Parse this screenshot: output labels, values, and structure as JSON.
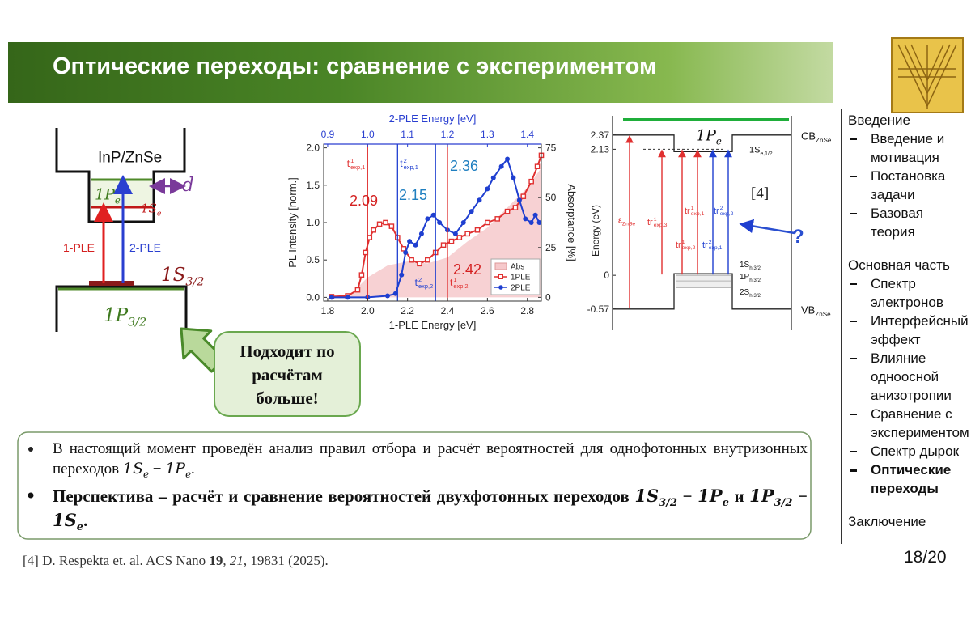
{
  "header": {
    "title": "Оптические переходы: сравнение с экспериментом"
  },
  "scheme": {
    "material": "InP/ZnSe",
    "level_pe": {
      "t": "1P",
      "sub": "e",
      "m": true
    },
    "level_se": {
      "t": "1S",
      "sub": "e",
      "m": true
    },
    "size": {
      "t": "d",
      "m": true
    },
    "ple1": "1-PLE",
    "ple2": "2-PLE",
    "level_s32": {
      "t": "1S",
      "sub": "3/2",
      "m": true
    },
    "level_p32": {
      "t": "1P",
      "sub": "3/2",
      "m": true
    }
  },
  "callout": {
    "lines": [
      "Подходит по",
      "расчётам",
      "больше!"
    ]
  },
  "chart_data": {
    "type": "line",
    "x_label": "1-PLE Energy [eV]",
    "x2_label": "2-PLE Energy [eV]",
    "y_label": "PL Intensity [norm.]",
    "y2_label": "Absorptance [%]",
    "xlim": [
      1.78,
      2.87
    ],
    "xticks": [
      1.8,
      {
        "value": 2,
        "label": "2.0"
      },
      2.2,
      2.4,
      2.6,
      2.8
    ],
    "x2lim": [
      0.89,
      1.435
    ],
    "x2ticks": [
      0.9,
      {
        "value": 1,
        "label": "1.0"
      },
      1.1,
      1.2,
      1.3,
      1.4
    ],
    "ylim": [
      -0.05,
      2.05
    ],
    "yticks": [
      {
        "value": 0,
        "label": "0.0"
      },
      0.5,
      {
        "value": 1,
        "label": "1.0"
      },
      1.5,
      {
        "value": 2,
        "label": "2.0"
      }
    ],
    "y2lim": [
      -1.875,
      76.875
    ],
    "y2ticks": [
      0,
      25,
      50,
      75
    ],
    "legend": "lower right",
    "series": [
      {
        "name": "Abs",
        "color": "#f6c9cb",
        "axis": "y2",
        "x": [
          1.9,
          2.0,
          2.1,
          2.2,
          2.3,
          2.4,
          2.5,
          2.6,
          2.7,
          2.8,
          2.87
        ],
        "values": [
          0,
          10,
          16,
          18,
          17,
          20,
          28,
          35,
          45,
          55,
          65
        ]
      },
      {
        "name": "1PLE",
        "color": "#e03030",
        "x": [
          1.82,
          1.9,
          1.95,
          1.97,
          1.99,
          2.01,
          2.03,
          2.06,
          2.09,
          2.12,
          2.15,
          2.18,
          2.22,
          2.26,
          2.3,
          2.34,
          2.38,
          2.42,
          2.46,
          2.5,
          2.55,
          2.6,
          2.65,
          2.7,
          2.74,
          2.78,
          2.82,
          2.85,
          2.87
        ],
        "values": [
          0.01,
          0.02,
          0.1,
          0.3,
          0.6,
          0.8,
          0.9,
          0.98,
          1.0,
          0.95,
          0.8,
          0.65,
          0.5,
          0.45,
          0.5,
          0.6,
          0.7,
          0.75,
          0.8,
          0.85,
          0.9,
          1.0,
          1.05,
          1.15,
          1.2,
          1.35,
          1.55,
          1.75,
          1.9
        ]
      },
      {
        "name": "2PLE",
        "color": "#1f3fd0",
        "x": [
          1.82,
          1.9,
          2.0,
          2.1,
          2.14,
          2.17,
          2.19,
          2.21,
          2.24,
          2.27,
          2.3,
          2.33,
          2.36,
          2.4,
          2.44,
          2.48,
          2.52,
          2.56,
          2.6,
          2.63,
          2.67,
          2.7,
          2.73,
          2.76,
          2.79,
          2.82,
          2.84,
          2.86
        ],
        "values": [
          0.0,
          0.0,
          0.0,
          0.02,
          0.05,
          0.3,
          0.6,
          0.75,
          0.7,
          0.85,
          1.05,
          1.1,
          1.0,
          0.9,
          0.85,
          1.0,
          1.15,
          1.3,
          1.45,
          1.6,
          1.75,
          1.85,
          1.6,
          1.3,
          1.05,
          1.0,
          1.1,
          1.0
        ]
      }
    ],
    "markers": [
      {
        "x": 2.0,
        "color": "#e03030",
        "label": {
          "t": "t",
          "sup": "1",
          "sub": "exp,1"
        }
      },
      {
        "x": 2.15,
        "color": "#1f3fd0",
        "label": {
          "t": "t",
          "sup": "2",
          "sub": "exp,1"
        }
      },
      {
        "x": 2.34,
        "color": "#1f3fd0",
        "label": {
          "t": "t",
          "sup": "2",
          "sub": "exp,2"
        }
      },
      {
        "x": 2.4,
        "color": "#e03030",
        "label": {
          "t": "t",
          "sup": "1",
          "sub": "exp,2"
        }
      }
    ],
    "annotations": [
      {
        "text": "2.09",
        "color": "#d42020"
      },
      {
        "text": "2.15",
        "color": "#1f7fc0"
      },
      {
        "text": "2.36",
        "color": "#1f7fc0"
      },
      {
        "text": "2.42",
        "color": "#d42020"
      }
    ]
  },
  "energy_diagram": {
    "y_label": "Energy (eV)",
    "ylim": [
      -0.75,
      2.6
    ],
    "yticks": [
      2.37,
      2.13,
      0,
      -0.57
    ],
    "levels": {
      "pe": {
        "t": "1P",
        "sub": "e",
        "m": true
      },
      "cb": {
        "t": "CB",
        "sub": "ZnSe"
      },
      "se": {
        "t": "1S",
        "sub": "e,1/2"
      },
      "vb": {
        "t": "VB",
        "sub": "ZnSe"
      },
      "holes": [
        {
          "t": "1S",
          "sub": "h,3/2"
        },
        {
          "t": "1P",
          "sub": "h,3/2"
        },
        {
          "t": "2S",
          "sub": "h,3/2"
        }
      ]
    },
    "transitions": [
      {
        "label": {
          "t": "ε",
          "sub": "ZnSe"
        },
        "color": "#e03030"
      },
      {
        "label": {
          "t": "tr",
          "sup": "1",
          "sub": "exp,3"
        },
        "color": "#e03030"
      },
      {
        "label": {
          "t": "tr",
          "sup": "1",
          "sub": "exp,2"
        },
        "color": "#e03030"
      },
      {
        "label": {
          "t": "tr",
          "sup": "1",
          "sub": "exp,1"
        },
        "color": "#e03030"
      },
      {
        "label": {
          "t": "tr",
          "sup": "2",
          "sub": "exp,1"
        },
        "color": "#1f3fd0"
      },
      {
        "label": {
          "t": "tr",
          "sup": "2",
          "sub": "exp,2"
        },
        "color": "#1f3fd0"
      }
    ],
    "ref": "[4]",
    "question": "?"
  },
  "sidebar": {
    "sections": [
      {
        "title": "Введение",
        "items": [
          "Введение и мотивация",
          "Постановка задачи",
          "Базовая теория"
        ]
      },
      {
        "title": "Основная часть",
        "items": [
          "Спектр электронов",
          "Интерфейсный эффект",
          "Влияние одноосной анизотропии",
          "Сравнение с экспериментом",
          "Спектр дырок",
          "Оптические переходы"
        ]
      },
      {
        "title": "Заключение",
        "items": []
      }
    ],
    "current": [
      1,
      5
    ]
  },
  "bullets": [
    {
      "bold": false,
      "segments": [
        "В настоящий момент проведён анализ правил отбора и расчёт вероятностей для однофотонных внутризонных переходов ",
        {
          "t": "1S",
          "sub": "e",
          "m": true
        },
        " − ",
        {
          "t": "1P",
          "sub": "e",
          "m": true
        },
        "."
      ]
    },
    {
      "bold": true,
      "segments": [
        "Перспектива – расчёт и сравнение вероятностей двухфотонных переходов ",
        {
          "t": "1S",
          "sub": "3/2",
          "m": true
        },
        " − ",
        {
          "t": "1P",
          "sub": "e",
          "m": true
        },
        " и ",
        {
          "t": "1P",
          "sub": "3/2",
          "m": true
        },
        " − ",
        {
          "t": "1S",
          "sub": "e",
          "m": true
        },
        "."
      ]
    }
  ],
  "reference": [
    "[4] D. Respekta et. al. ACS Nano ",
    {
      "t": "19",
      "b": true
    },
    ", ",
    {
      "t": "21",
      "i": true
    },
    ", 19831 (2025)."
  ],
  "page": "18/20"
}
